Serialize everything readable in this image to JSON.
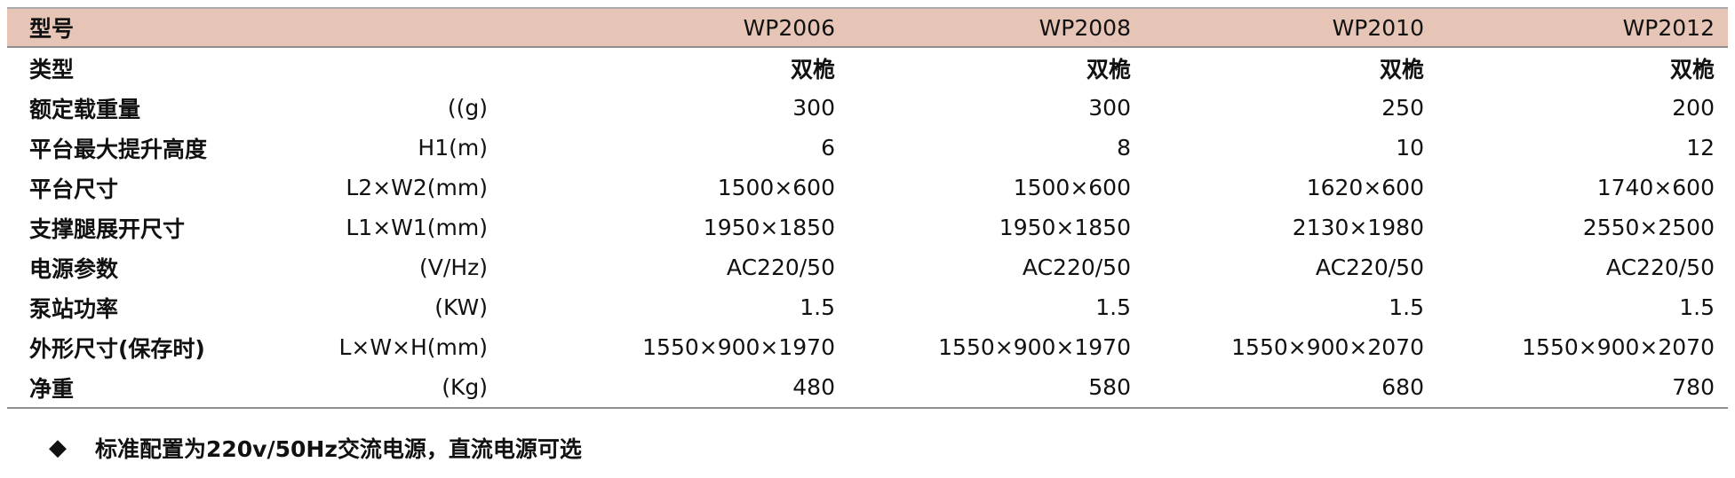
{
  "table": {
    "header": {
      "label": "型号",
      "models": [
        "WP2006",
        "WP2008",
        "WP2010",
        "WP2012"
      ]
    },
    "rows": [
      {
        "label": "类型",
        "unit": "",
        "values": [
          "双桅",
          "双桅",
          "双桅",
          "双桅"
        ]
      },
      {
        "label": "额定载重量",
        "unit": "((g)",
        "values": [
          "300",
          "300",
          "250",
          "200"
        ]
      },
      {
        "label": "平台最大提升高度",
        "unit": "H1(m)",
        "values": [
          "6",
          "8",
          "10",
          "12"
        ]
      },
      {
        "label": "平台尺寸",
        "unit": "L2×W2(mm)",
        "values": [
          "1500×600",
          "1500×600",
          "1620×600",
          "1740×600"
        ]
      },
      {
        "label": "支撑腿展开尺寸",
        "unit": "L1×W1(mm)",
        "values": [
          "1950×1850",
          "1950×1850",
          "2130×1980",
          "2550×2500"
        ]
      },
      {
        "label": "电源参数",
        "unit": "(V/Hz)",
        "values": [
          "AC220/50",
          "AC220/50",
          "AC220/50",
          "AC220/50"
        ]
      },
      {
        "label": "泵站功率",
        "unit": "(KW)",
        "values": [
          "1.5",
          "1.5",
          "1.5",
          "1.5"
        ]
      },
      {
        "label": "外形尺寸(保存时)",
        "unit": "L×W×H(mm)",
        "values": [
          "1550×900×1970",
          "1550×900×1970",
          "1550×900×2070",
          "1550×900×2070"
        ]
      },
      {
        "label": "净重",
        "unit": "(Kg)",
        "values": [
          "480",
          "580",
          "680",
          "780"
        ]
      }
    ]
  },
  "footnote": {
    "bullet": "◆",
    "text": "标准配置为220v/50Hz交流电源，直流电源可选"
  },
  "colors": {
    "header_bg": "#e7c5b6",
    "rule": "#8f8f8f",
    "text": "#111111"
  }
}
